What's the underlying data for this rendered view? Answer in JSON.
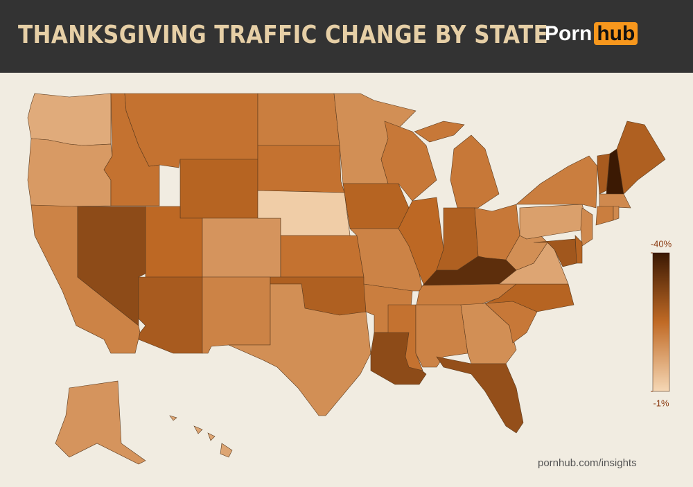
{
  "header": {
    "title": "THANKSGIVING TRAFFIC CHANGE BY STATE",
    "logo": [
      "Porn",
      "hub"
    ]
  },
  "chart_data": {
    "type": "choropleth",
    "values": [
      -9,
      -12,
      -16,
      -28,
      -19,
      -19,
      -22,
      -21,
      -13,
      -24,
      -16,
      -17,
      -19,
      -3,
      -19,
      -23,
      -14,
      -14,
      -22,
      -16,
      -17,
      -28,
      -18,
      -21,
      -18,
      -23,
      -18,
      -35,
      -17,
      -19,
      -16,
      -14,
      -27,
      -18,
      -22,
      -10,
      -14,
      -11,
      -17,
      -24,
      -40,
      -23,
      -15,
      -17,
      -15,
      -15,
      -22,
      -25,
      -13,
      -10
    ],
    "colorbar": {
      "lim": [
        -40,
        -1
      ],
      "ticks": [
        {
          "value": -40,
          "label": "-40%"
        },
        {
          "value": -1,
          "label": "-1%"
        }
      ],
      "colors": [
        "#3b1903",
        "#c06a25",
        "#f6d8b6"
      ]
    }
  },
  "footer": {
    "source": "pornhub.com/insights"
  }
}
